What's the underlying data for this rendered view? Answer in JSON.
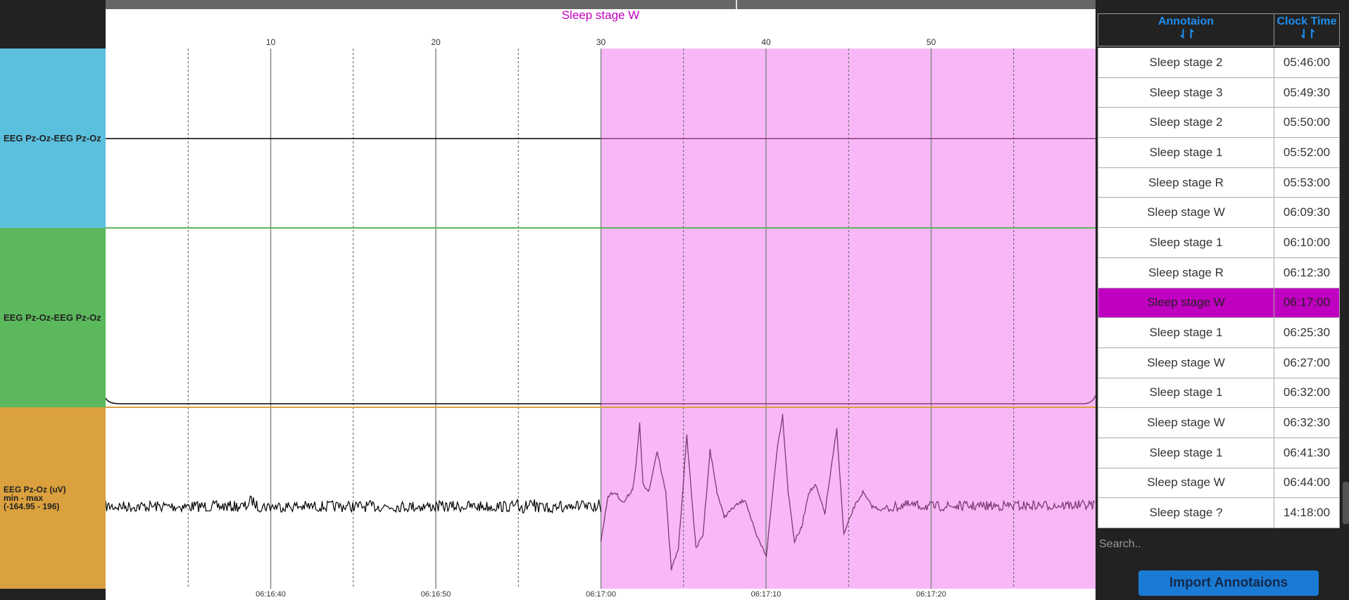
{
  "plot": {
    "title": "Sleep stage W",
    "top_ticks": [
      "10",
      "20",
      "30",
      "40",
      "50"
    ],
    "bottom_ticks": [
      "06:16:40",
      "06:16:50",
      "06:17:00",
      "06:17:10",
      "06:17:20"
    ],
    "highlight_color": "#f8b8f8",
    "highlight_start_seconds": 30
  },
  "channels": [
    {
      "label": "EEG Pz-Oz-EEG Pz-Oz",
      "color": "#5bc0de"
    },
    {
      "label": "EEG Pz-Oz-EEG Pz-Oz",
      "color": "#5cb85c"
    },
    {
      "label_lines": [
        "EEG Pz-Oz (uV)",
        "min - max",
        "(-164.95 - 196)"
      ],
      "color": "#dba13e"
    }
  ],
  "table": {
    "col_annotation": "Annotaion",
    "col_time": "Clock Time",
    "sort_icon": "sort-arrows-icon",
    "header_color": "#1e8ef0",
    "selected_color": "#c000c0",
    "rows": [
      {
        "annotation": "Sleep stage 2",
        "time": "05:46:00"
      },
      {
        "annotation": "Sleep stage 3",
        "time": "05:49:30"
      },
      {
        "annotation": "Sleep stage 2",
        "time": "05:50:00"
      },
      {
        "annotation": "Sleep stage 1",
        "time": "05:52:00"
      },
      {
        "annotation": "Sleep stage R",
        "time": "05:53:00"
      },
      {
        "annotation": "Sleep stage W",
        "time": "06:09:30"
      },
      {
        "annotation": "Sleep stage 1",
        "time": "06:10:00"
      },
      {
        "annotation": "Sleep stage R",
        "time": "06:12:30"
      },
      {
        "annotation": "Sleep stage W",
        "time": "06:17:00",
        "selected": true
      },
      {
        "annotation": "Sleep stage 1",
        "time": "06:25:30"
      },
      {
        "annotation": "Sleep stage W",
        "time": "06:27:00"
      },
      {
        "annotation": "Sleep stage 1",
        "time": "06:32:00"
      },
      {
        "annotation": "Sleep stage W",
        "time": "06:32:30"
      },
      {
        "annotation": "Sleep stage 1",
        "time": "06:41:30"
      },
      {
        "annotation": "Sleep stage W",
        "time": "06:44:00"
      },
      {
        "annotation": "Sleep stage ?",
        "time": "14:18:00"
      }
    ]
  },
  "search": {
    "placeholder": "Search.."
  },
  "import_button": {
    "label": "Import Annotaions",
    "color": "#1a7bd5"
  }
}
